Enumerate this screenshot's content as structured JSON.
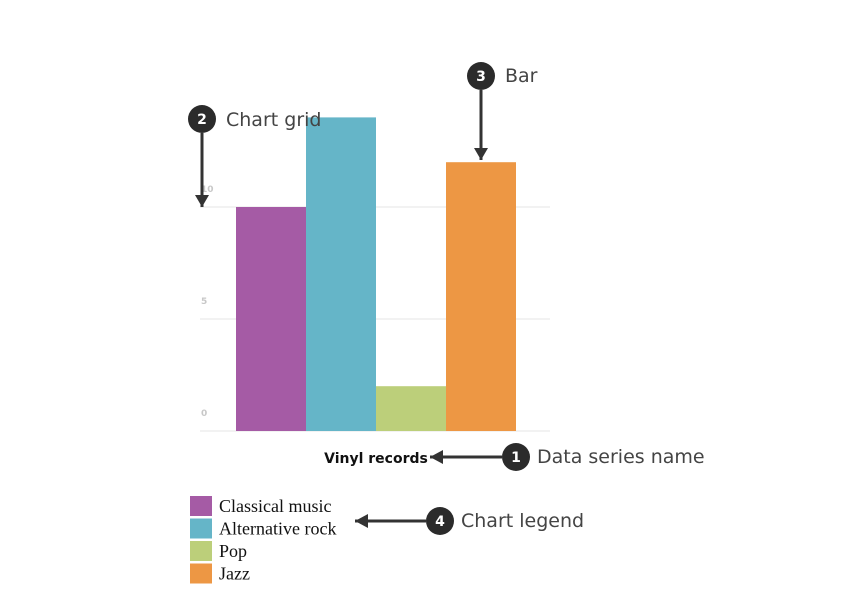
{
  "chart_data": {
    "type": "bar",
    "title": "",
    "xlabel": "",
    "ylabel": "",
    "series_name": "Vinyl records",
    "categories": [
      "Classical music",
      "Alternative rock",
      "Pop",
      "Jazz"
    ],
    "values": [
      10,
      14,
      2,
      12
    ],
    "colors": [
      "#a55ba5",
      "#65b5c8",
      "#bccf7a",
      "#ed9744"
    ],
    "yticks": [
      "0",
      "5",
      "10"
    ],
    "ylim": [
      0,
      15
    ],
    "grid": true,
    "legend_position": "bottom-left"
  },
  "annotations": [
    {
      "number": "1",
      "label": "Data series name"
    },
    {
      "number": "2",
      "label": "Chart grid"
    },
    {
      "number": "3",
      "label": "Bar"
    },
    {
      "number": "4",
      "label": "Chart legend"
    }
  ],
  "colors": {
    "badge": "#2b2b2b",
    "arrow": "#333333"
  }
}
